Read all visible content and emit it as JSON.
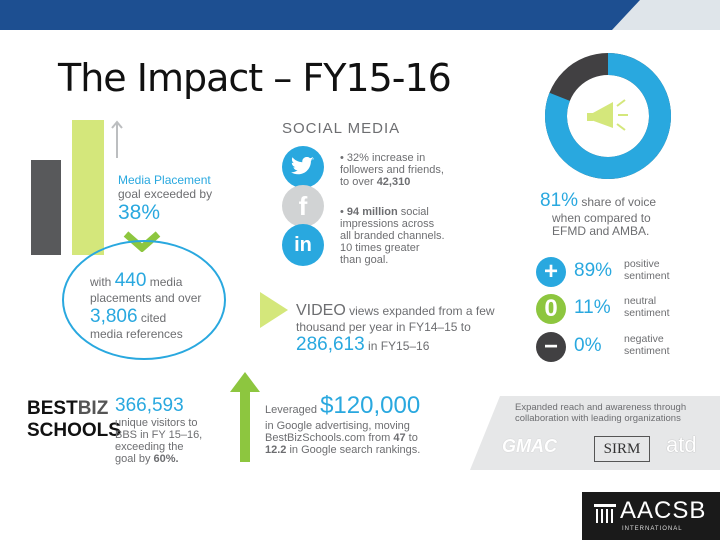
{
  "title": "The Impact – FY15-16",
  "social_media": {
    "heading": "SOCIAL MEDIA",
    "bullet1": {
      "prefix": "• ",
      "highlight": "32% increase in",
      "line2": "followers and friends,",
      "line3": "to over ",
      "bold3": "42,310"
    },
    "bullet2": {
      "prefix": "• ",
      "highlight": "94 million",
      "rest1": " social",
      "line2": "impressions across",
      "line3": "all branded channels.",
      "line4": "10 times greater",
      "line5": "than goal."
    },
    "icons": {
      "twitter": "twitter-icon",
      "facebook": "facebook-icon",
      "linkedin": "linkedin-icon"
    }
  },
  "media_placement": {
    "line1": "Media Placement",
    "line2": "goal exceeded by",
    "pct": "38%",
    "with": "with ",
    "count": "440",
    "line3": " media",
    "line4": "placements and over",
    "cited_num": "3,806",
    "cited_label": " cited",
    "line5": "media references"
  },
  "share_of_voice": {
    "pct": "81%",
    "line1": " share of voice",
    "line2": "when compared to",
    "line3": "EFMD and AMBA."
  },
  "sentiment": [
    {
      "symbol": "+",
      "pct": "89%",
      "l1": "positive",
      "l2": "sentiment",
      "color": "#29a8df"
    },
    {
      "symbol": "0",
      "pct": "11%",
      "l1": "neutral",
      "l2": "sentiment",
      "color": "#8dc63f"
    },
    {
      "symbol": "−",
      "pct": "0%",
      "l1": "negative",
      "l2": "sentiment",
      "color": "#414042"
    }
  ],
  "video": {
    "word": "VIDEO",
    "rest1": " views expanded from a few",
    "line2": "thousand per year in FY14–15 to",
    "num": "286,613",
    "in": " in FY15–16"
  },
  "bestbiz": {
    "logo1": "BEST",
    "logo1b": "BIZ",
    "logo2": "SCHOOLS",
    "num": "366,593",
    "l1": "unique visitors to",
    "l2": "BBS in FY 15–16,",
    "l3": "exceeding the",
    "l4": "goal by ",
    "l4b": "60%."
  },
  "google": {
    "leveraged": "Leveraged",
    "amount": "$120,000",
    "l1": "in Google advertising, moving",
    "l2": "BestBizSchools.com from ",
    "l2b": "47",
    "l2c": " to",
    "l3": "12.2",
    "l3b": " in Google search rankings."
  },
  "reach": {
    "l1": "Expanded reach and awareness through",
    "l2": "collaboration with leading organizations",
    "gmac": "GMAC",
    "sirm": "SIRM",
    "atd": "atd"
  },
  "aacsb": {
    "name": "AACSB",
    "sub": "INTERNATIONAL"
  }
}
